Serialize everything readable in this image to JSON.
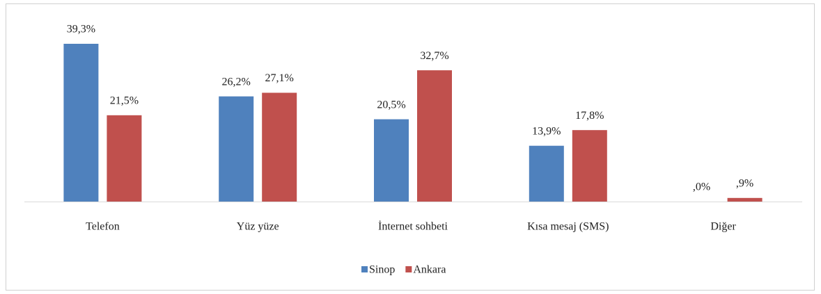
{
  "chart_data": {
    "type": "bar",
    "categories": [
      "Telefon",
      "Yüz yüze",
      "İnternet sohbeti",
      "Kısa mesaj (SMS)",
      "Diğer"
    ],
    "series": [
      {
        "name": "Sinop",
        "color": "#4f81bd",
        "values": [
          39.3,
          26.2,
          20.5,
          13.9,
          0
        ],
        "value_labels": [
          "39,3%",
          "26,2%",
          "20,5%",
          "13,9%",
          ",0%"
        ]
      },
      {
        "name": "Ankara",
        "color": "#c0504d",
        "values": [
          21.5,
          27.1,
          32.7,
          17.8,
          0.9
        ],
        "value_labels": [
          "21,5%",
          "27,1%",
          "32,7%",
          "17,8%",
          ",9%"
        ]
      }
    ],
    "legend": "bottom"
  }
}
